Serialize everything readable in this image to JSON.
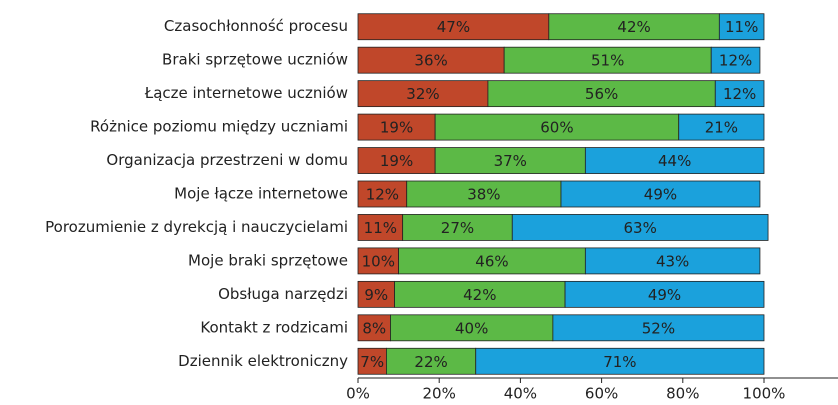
{
  "chart_data": {
    "type": "stacked-bar-horizontal",
    "categories": [
      "Czasochłonność procesu",
      "Braki sprzętowe uczniów",
      "Łącze internetowe uczniów",
      "Różnice poziomu między uczniami",
      "Organizacja przestrzeni w domu",
      "Moje łącze internetowe",
      "Porozumienie z dyrekcją i nauczycielami",
      "Moje braki sprzętowe",
      "Obsługa narzędzi",
      "Kontakt z rodzicami",
      "Dziennik elektroniczny"
    ],
    "series": [
      {
        "color": "#c0472a",
        "values": [
          47,
          36,
          32,
          19,
          19,
          12,
          11,
          10,
          9,
          8,
          7
        ],
        "value_labels": [
          "47%",
          "36%",
          "32%",
          "19%",
          "19%",
          "12%",
          "11%",
          "10%",
          "9%",
          "8%",
          "7%"
        ]
      },
      {
        "color": "#5cb946",
        "values": [
          42,
          51,
          56,
          60,
          37,
          38,
          27,
          46,
          42,
          40,
          22
        ],
        "value_labels": [
          "42%",
          "51%",
          "56%",
          "60%",
          "37%",
          "38%",
          "27%",
          "46%",
          "42%",
          "40%",
          "22%"
        ]
      },
      {
        "color": "#1ba1dc",
        "values": [
          11,
          12,
          12,
          21,
          44,
          49,
          63,
          43,
          49,
          52,
          71
        ],
        "value_labels": [
          "11%",
          "12%",
          "12%",
          "21%",
          "44%",
          "49%",
          "63%",
          "43%",
          "49%",
          "52%",
          "71%"
        ]
      }
    ],
    "xlim": [
      0,
      100
    ],
    "xticks": [
      {
        "value": 0,
        "label": "0%"
      },
      {
        "value": 20,
        "label": "20%"
      },
      {
        "value": 40,
        "label": "40%"
      },
      {
        "value": 60,
        "label": "60%"
      },
      {
        "value": 80,
        "label": "80%"
      },
      {
        "value": 100,
        "label": "100%"
      }
    ]
  }
}
